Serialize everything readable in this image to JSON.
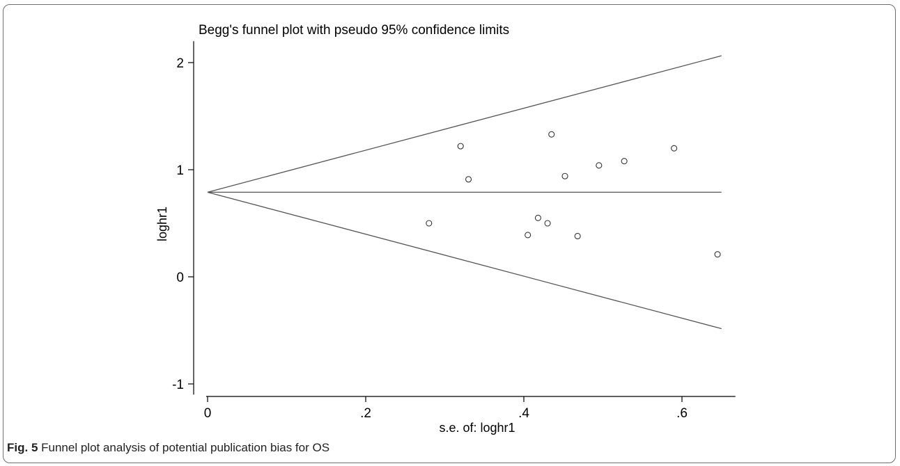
{
  "chart_data": {
    "type": "scatter",
    "title": "Begg's funnel plot with pseudo 95% confidence limits",
    "xlabel": "s.e. of: loghr1",
    "ylabel": "loghr1",
    "xlim": [
      0,
      0.65
    ],
    "ylim": [
      -1.1,
      2.2
    ],
    "xticks": [
      0,
      0.2,
      0.4,
      0.6
    ],
    "xtick_labels": [
      "0",
      ".2",
      ".4",
      ".6"
    ],
    "yticks": [
      -1,
      0,
      1,
      2
    ],
    "ytick_labels": [
      "-1",
      "0",
      "1",
      "2"
    ],
    "grid": false,
    "legend": "none",
    "pooled_estimate": 0.79,
    "confidence_limit_z": 1.96,
    "x": [
      0.28,
      0.32,
      0.33,
      0.405,
      0.418,
      0.43,
      0.435,
      0.452,
      0.468,
      0.495,
      0.527,
      0.59,
      0.645
    ],
    "y": [
      0.5,
      1.22,
      0.91,
      0.39,
      0.55,
      0.5,
      1.33,
      0.94,
      0.38,
      1.04,
      1.08,
      1.2,
      0.21
    ]
  },
  "caption": {
    "label": "Fig. 5",
    "text": " Funnel plot analysis of potential publication bias for OS"
  }
}
